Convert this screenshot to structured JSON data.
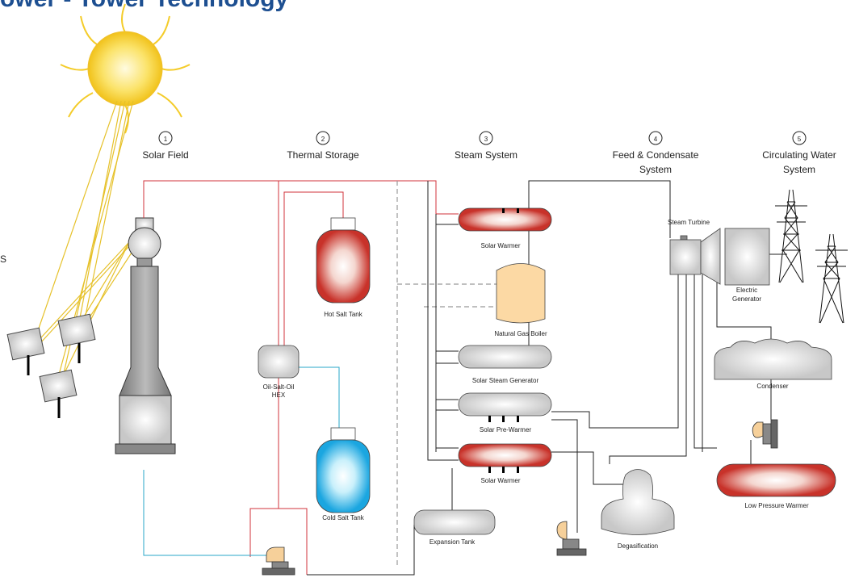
{
  "header": {
    "title": "ower - Tower Technology",
    "side_letter": "S"
  },
  "sections": [
    {
      "number": "1",
      "label": [
        "Solar Field"
      ]
    },
    {
      "number": "2",
      "label": [
        "Thermal Storage"
      ]
    },
    {
      "number": "3",
      "label": [
        "Steam System"
      ]
    },
    {
      "number": "4",
      "label": [
        "Feed & Condensate",
        "System"
      ]
    },
    {
      "number": "5",
      "label": [
        "Circulating Water",
        "System"
      ]
    }
  ],
  "components": [
    {
      "label": [
        "Solar Warmer"
      ]
    },
    {
      "label": [
        "Hot Salt Tank"
      ]
    },
    {
      "label": [
        "Natural Gas Boiler"
      ]
    },
    {
      "label": [
        "Oil-Salt-Oil",
        "HEX"
      ]
    },
    {
      "label": [
        "Solar Steam Generator"
      ]
    },
    {
      "label": [
        "Solar Pre-Warmer"
      ]
    },
    {
      "label": [
        "Solar Warmer"
      ]
    },
    {
      "label": [
        "Cold Salt Tank"
      ]
    },
    {
      "label": [
        "Expansion Tank"
      ]
    },
    {
      "label": [
        "Degasification"
      ]
    },
    {
      "label": [
        "Steam Turbine"
      ]
    },
    {
      "label": [
        "Electric",
        "Generator"
      ]
    },
    {
      "label": [
        "Condenser"
      ]
    },
    {
      "label": [
        "Low Pressure Warmer"
      ]
    }
  ]
}
